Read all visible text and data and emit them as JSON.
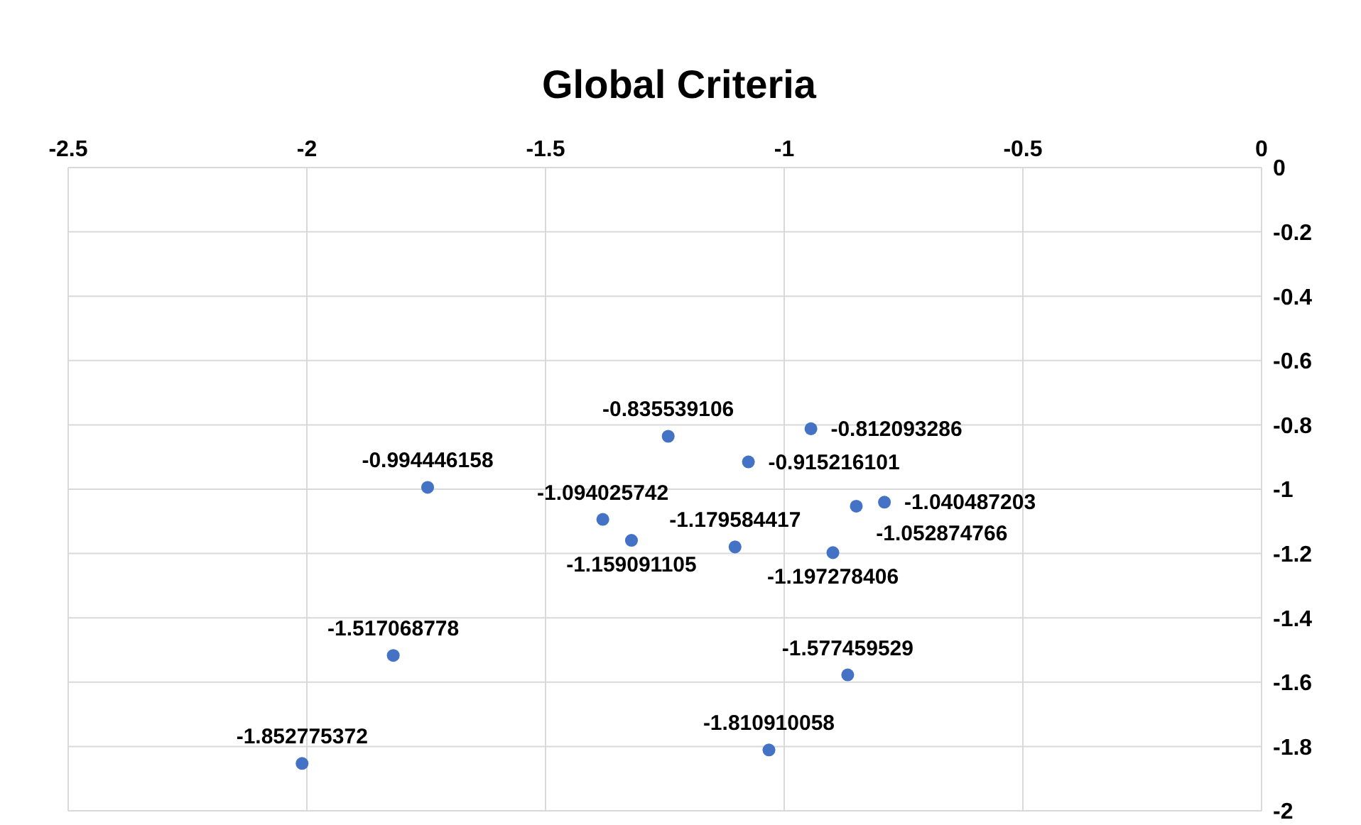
{
  "chart_data": {
    "type": "scatter",
    "title": "Global Criteria",
    "x": [
      -2.01,
      -1.819,
      -1.747,
      -1.38,
      -1.32,
      -1.243,
      -1.103,
      -1.075,
      -0.944,
      -0.898,
      -0.867,
      -1.032,
      -0.849,
      -0.79
    ],
    "series": [
      {
        "color": "#4472c4",
        "values": [
          -1.852775372,
          -1.517068778,
          -0.994446158,
          -1.094025742,
          -1.159091105,
          -0.835539106,
          -1.179584417,
          -0.915216101,
          -0.812093286,
          -1.197278406,
          -1.577459529,
          -1.810910058,
          -1.052874766,
          -1.040487203
        ]
      }
    ],
    "xlim": [
      -2.5,
      0
    ],
    "xticks": [
      -2.5,
      -2,
      -1.5,
      -1,
      -0.5,
      0
    ],
    "ylim": [
      -2,
      0
    ],
    "yticks": [
      -2,
      -1.8,
      -1.6,
      -1.4,
      -1.2,
      -1,
      -0.8,
      -0.6,
      -0.4,
      -0.2,
      0
    ],
    "grid": true,
    "marker": "circle",
    "data_labels": true,
    "legend": false
  }
}
